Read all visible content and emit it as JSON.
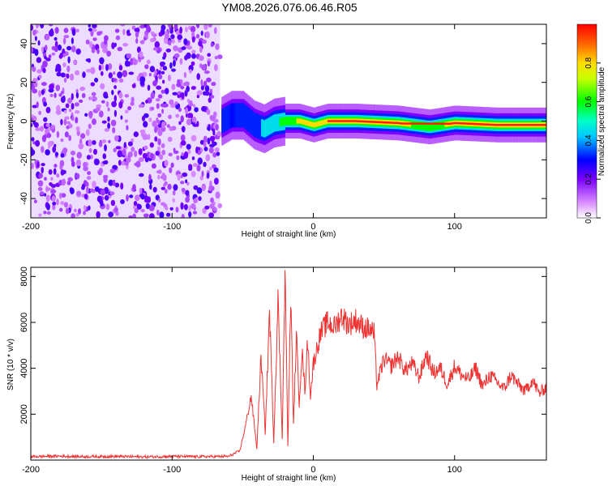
{
  "title": "YM08.2026.076.06.46.R05",
  "chart_data": [
    {
      "type": "heatmap",
      "xlabel": "Height of straight line (km)",
      "ylabel": "Frequency (Hz)",
      "xlim": [
        -200,
        165
      ],
      "ylim": [
        -50,
        50
      ],
      "x_ticks": [
        -200,
        -100,
        0,
        100
      ],
      "y_ticks": [
        -40,
        -20,
        0,
        20,
        40
      ],
      "colorbar": {
        "label": "Normalized spectral amplitude",
        "range": [
          0,
          1
        ],
        "ticks": [
          "0.0",
          "0.2",
          "0.4",
          "0.6",
          "0.8"
        ],
        "colormap": "white-purple-blue-cyan-green-yellow-red"
      },
      "noise_region": {
        "x_range": [
          -200,
          -66
        ],
        "description_values": "scattered low amplitude"
      },
      "signal_track": [
        {
          "x": -65,
          "freq": 0,
          "amp": 0.35
        },
        {
          "x": -58,
          "freq": 3,
          "amp": 0.3
        },
        {
          "x": -50,
          "freq": 3,
          "amp": 0.35
        },
        {
          "x": -42,
          "freq": -2,
          "amp": 0.4
        },
        {
          "x": -35,
          "freq": -4,
          "amp": 0.45
        },
        {
          "x": -28,
          "freq": -1,
          "amp": 0.5
        },
        {
          "x": -20,
          "freq": 0,
          "amp": 0.7
        },
        {
          "x": -10,
          "freq": 0,
          "amp": 0.8
        },
        {
          "x": 0,
          "freq": -2,
          "amp": 0.8
        },
        {
          "x": 10,
          "freq": 0,
          "amp": 0.85
        },
        {
          "x": 30,
          "freq": 0,
          "amp": 0.85
        },
        {
          "x": 60,
          "freq": -1,
          "amp": 0.9
        },
        {
          "x": 82,
          "freq": -3,
          "amp": 0.6
        },
        {
          "x": 100,
          "freq": -1,
          "amp": 0.9
        },
        {
          "x": 130,
          "freq": -2,
          "amp": 0.95
        },
        {
          "x": 165,
          "freq": -2,
          "amp": 0.95
        }
      ]
    },
    {
      "type": "line",
      "xlabel": "Height of straight line (km)",
      "ylabel": "SNR (10 * v/v)",
      "xlim": [
        -200,
        165
      ],
      "ylim": [
        0,
        8400
      ],
      "x_ticks": [
        -200,
        -100,
        0,
        100
      ],
      "y_ticks": [
        2000,
        4000,
        6000,
        8000
      ],
      "color": "#ee3333",
      "series": [
        {
          "x": [
            -200,
            -180,
            -160,
            -140,
            -120,
            -100,
            -80,
            -60,
            -52,
            -48,
            -44,
            -40,
            -37,
            -34,
            -31,
            -28,
            -25,
            -22,
            -20,
            -18,
            -16,
            -14,
            -12,
            -10,
            -8,
            -6,
            -4,
            -2,
            0,
            5,
            10,
            15,
            20,
            25,
            30,
            35,
            40,
            43,
            45,
            50,
            55,
            60,
            65,
            70,
            75,
            80,
            85,
            90,
            95,
            100,
            105,
            110,
            115,
            120,
            125,
            130,
            135,
            140,
            145,
            150,
            155,
            160,
            165
          ],
          "y": [
            150,
            170,
            150,
            160,
            140,
            160,
            150,
            160,
            400,
            1500,
            2800,
            500,
            4500,
            1200,
            6500,
            800,
            7000,
            1000,
            8300,
            600,
            7200,
            1500,
            5500,
            2500,
            4800,
            3000,
            5200,
            2800,
            4200,
            5500,
            6000,
            5800,
            6300,
            5900,
            6100,
            5800,
            5700,
            5500,
            3300,
            4400,
            4100,
            4500,
            3900,
            4200,
            3600,
            4600,
            3800,
            4000,
            3300,
            4100,
            3700,
            3500,
            4000,
            3200,
            3700,
            3400,
            3100,
            3700,
            3300,
            3000,
            3500,
            2900,
            3200
          ]
        }
      ]
    }
  ]
}
